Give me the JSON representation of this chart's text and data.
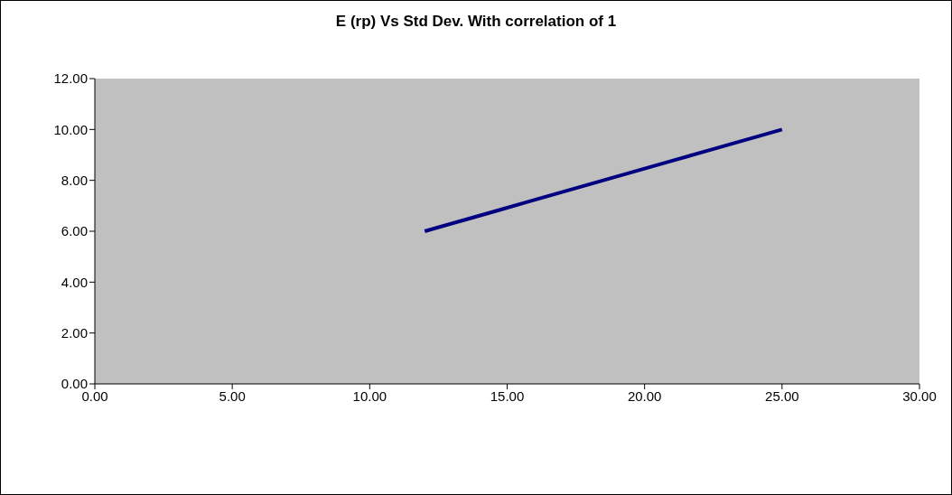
{
  "chart_data": {
    "type": "line",
    "title": "E (rp) Vs Std Dev. With correlation of 1",
    "x": [
      12,
      13.3,
      14.6,
      15.9,
      17.2,
      18.5,
      19.8,
      21.1,
      22.4,
      23.7,
      25
    ],
    "series": [
      {
        "color": "#000080",
        "values": [
          6,
          6.4,
          6.8,
          7.2,
          7.6,
          8,
          8.4,
          8.8,
          9.2,
          9.6,
          10
        ]
      }
    ],
    "xlim": [
      0,
      30
    ],
    "xticks": [
      {
        "value": 0,
        "label": "0.00"
      },
      {
        "value": 5,
        "label": "5.00"
      },
      {
        "value": 10,
        "label": "10.00"
      },
      {
        "value": 15,
        "label": "15.00"
      },
      {
        "value": 20,
        "label": "20.00"
      },
      {
        "value": 25,
        "label": "25.00"
      },
      {
        "value": 30,
        "label": "30.00"
      }
    ],
    "ylim": [
      0,
      12
    ],
    "yticks": [
      {
        "value": 0,
        "label": "0.00"
      },
      {
        "value": 2,
        "label": "2.00"
      },
      {
        "value": 4,
        "label": "4.00"
      },
      {
        "value": 6,
        "label": "6.00"
      },
      {
        "value": 8,
        "label": "8.00"
      },
      {
        "value": 10,
        "label": "10.00"
      },
      {
        "value": 12,
        "label": "12.00"
      }
    ],
    "grid": false,
    "marker": "none",
    "line_style": "solid"
  }
}
